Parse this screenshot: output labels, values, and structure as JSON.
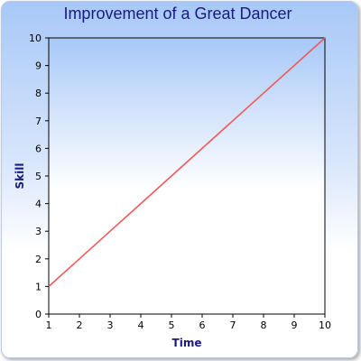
{
  "chart_data": {
    "type": "line",
    "title": "Improvement of a Great Dancer",
    "xlabel": "Time",
    "ylabel": "Skill",
    "xlim": [
      1,
      10
    ],
    "ylim": [
      0,
      10
    ],
    "x_ticks": [
      1,
      2,
      3,
      4,
      5,
      6,
      7,
      8,
      9,
      10
    ],
    "y_ticks": [
      0,
      1,
      2,
      3,
      4,
      5,
      6,
      7,
      8,
      9,
      10
    ],
    "grid": false,
    "series": [
      {
        "color": "#ee5a5a",
        "x": [
          1,
          2,
          3,
          4,
          5,
          6,
          7,
          8,
          9,
          10
        ],
        "y": [
          1,
          2,
          3,
          4,
          5,
          6,
          7,
          8,
          9,
          10
        ]
      }
    ],
    "background": {
      "gradient_top": "#a7c8f7",
      "gradient_bottom": "#ffffff"
    }
  }
}
